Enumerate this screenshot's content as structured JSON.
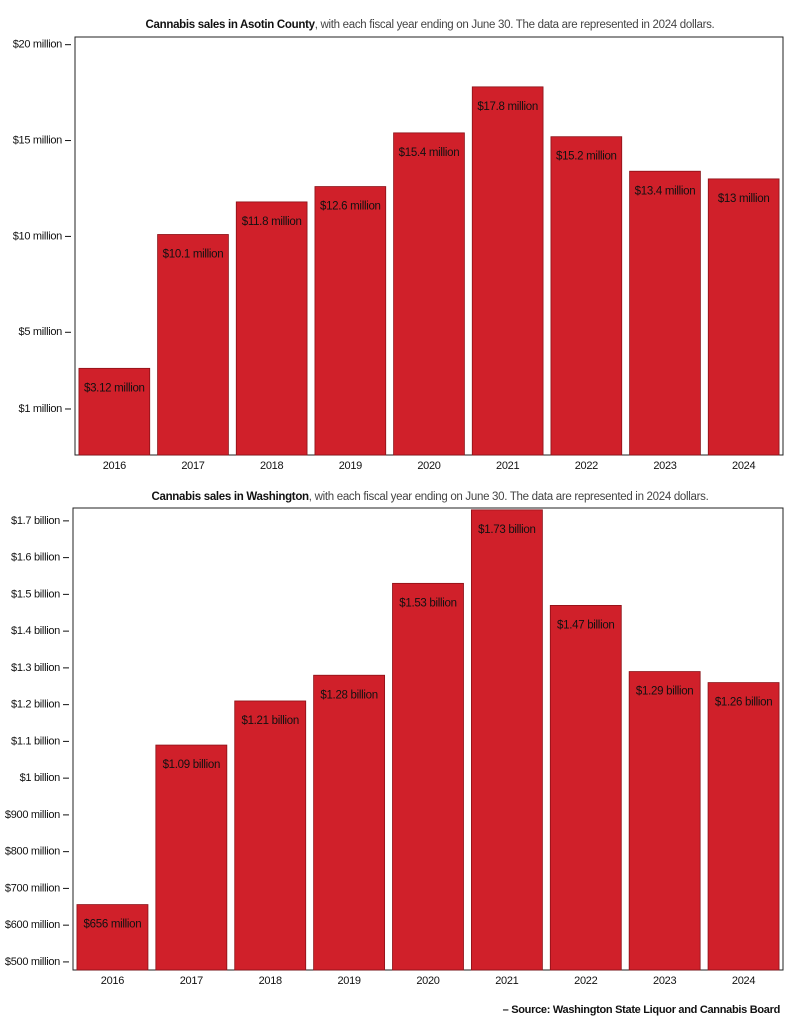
{
  "chart_data": [
    {
      "type": "bar",
      "title": "Cannabis sales in Asotin County",
      "subtitle": ", with each fiscal year ending on June 30. The data are represented in 2024 dollars.",
      "categories": [
        "2016",
        "2017",
        "2018",
        "2019",
        "2020",
        "2021",
        "2022",
        "2023",
        "2024"
      ],
      "values": [
        3.12,
        10.1,
        11.8,
        12.6,
        15.4,
        17.8,
        15.2,
        13.4,
        13
      ],
      "value_labels": [
        "$3.12 million",
        "$10.1 million",
        "$11.8 million",
        "$12.6 million",
        "$15.4 million",
        "$17.8 million",
        "$15.2 million",
        "$13.4 million",
        "$13 million"
      ],
      "color": "#d0202a",
      "ylim": [
        -1.4,
        20.4
      ],
      "yticks": [
        {
          "value": 1,
          "label": "$1 million"
        },
        {
          "value": 5,
          "label": "$5 million"
        },
        {
          "value": 10,
          "label": "$10 million"
        },
        {
          "value": 15,
          "label": "$15 million"
        },
        {
          "value": 20,
          "label": "$20 million"
        }
      ]
    },
    {
      "type": "bar",
      "title": "Cannabis sales in Washington",
      "subtitle": ", with each fiscal year ending on June 30. The data are represented in 2024 dollars.",
      "categories": [
        "2016",
        "2017",
        "2018",
        "2019",
        "2020",
        "2021",
        "2022",
        "2023",
        "2024"
      ],
      "values": [
        0.656,
        1.09,
        1.21,
        1.28,
        1.53,
        1.73,
        1.47,
        1.29,
        1.26
      ],
      "value_labels": [
        "$656 million",
        "$1.09 billion",
        "$1.21 billion",
        "$1.28 billion",
        "$1.53 billion",
        "$1.73 billion",
        "$1.47 billion",
        "$1.29 billion",
        "$1.26 billion"
      ],
      "color": "#d0202a",
      "ylim": [
        0.478,
        1.735
      ],
      "yticks": [
        {
          "value": 0.5,
          "label": "$500 million"
        },
        {
          "value": 0.6,
          "label": "$600 million"
        },
        {
          "value": 0.7,
          "label": "$700 million"
        },
        {
          "value": 0.8,
          "label": "$800 million"
        },
        {
          "value": 0.9,
          "label": "$900 million"
        },
        {
          "value": 1,
          "label": "$1 billion"
        },
        {
          "value": 1.1,
          "label": "$1.1 billion"
        },
        {
          "value": 1.2,
          "label": "$1.2 billion"
        },
        {
          "value": 1.3,
          "label": "$1.3 billion"
        },
        {
          "value": 1.4,
          "label": "$1.4 billion"
        },
        {
          "value": 1.5,
          "label": "$1.5 billion"
        },
        {
          "value": 1.6,
          "label": "$1.6 billion"
        },
        {
          "value": 1.7,
          "label": "$1.7 billion"
        }
      ]
    }
  ],
  "source": "– Source: Washington State Liquor and Cannabis Board"
}
